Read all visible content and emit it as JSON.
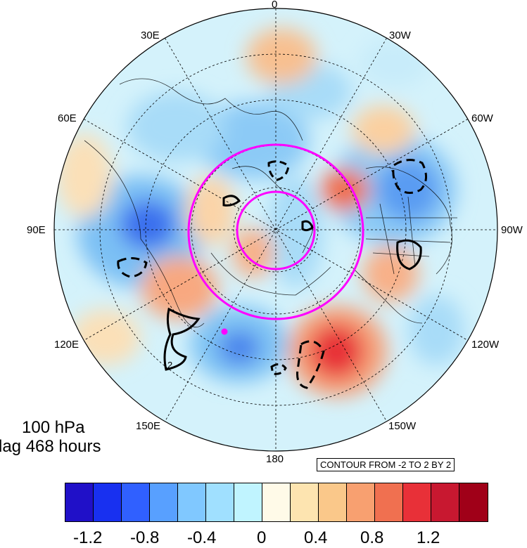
{
  "title": {
    "line1": "100 hPa",
    "line2": "lag 468 hours"
  },
  "contour_note": "CONTOUR FROM -2 TO 2 BY 2",
  "contour_label": "2",
  "longitude_labels": {
    "lon_0": "0",
    "lon_30w": "30W",
    "lon_60w": "60W",
    "lon_90w": "90W",
    "lon_120w": "120W",
    "lon_150w": "150W",
    "lon_180": "180",
    "lon_150e": "150E",
    "lon_120e": "120E",
    "lon_90e": "90E",
    "lon_60e": "60E",
    "lon_30e": "30E"
  },
  "colorbar": {
    "colors": [
      "#2010c8",
      "#1830f0",
      "#3060ff",
      "#58a0ff",
      "#80c8ff",
      "#a0e0ff",
      "#c0f4ff",
      "#fffae8",
      "#fde4b0",
      "#fac88a",
      "#f8a070",
      "#f07050",
      "#e83038",
      "#c81830",
      "#a00018"
    ],
    "tick_labels": [
      "-1.2",
      "-0.8",
      "-0.4",
      "0",
      "0.4",
      "0.8",
      "1.2"
    ]
  },
  "colors": {
    "circle": "#ff00ff",
    "marker": "#ff00ff"
  }
}
